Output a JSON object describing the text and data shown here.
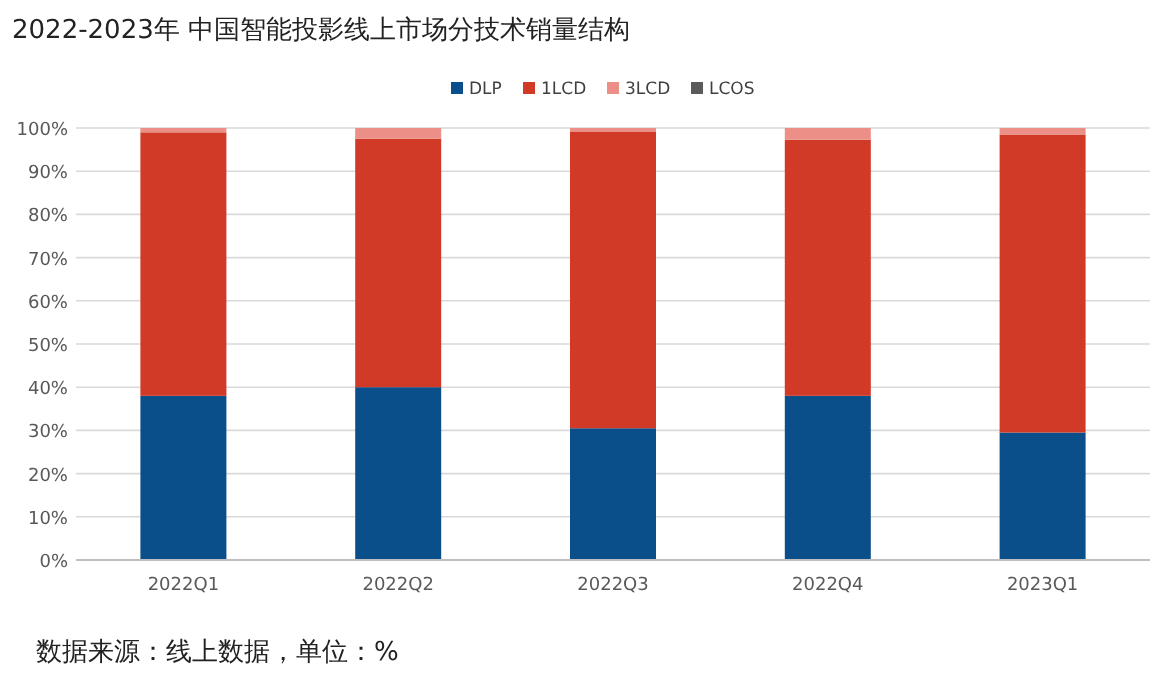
{
  "chart_data": {
    "type": "bar",
    "stacked": true,
    "title": "2022-2023年 中国智能投影线上市场分技术销量结构",
    "categories": [
      "2022Q1",
      "2022Q2",
      "2022Q3",
      "2022Q4",
      "2023Q1"
    ],
    "series": [
      {
        "name": "DLP",
        "color": "#0b4f8a",
        "values": [
          38,
          40,
          30.5,
          38,
          29.5
        ]
      },
      {
        "name": "1LCD",
        "color": "#d03a27",
        "values": [
          61,
          57.5,
          68.7,
          59.3,
          69
        ]
      },
      {
        "name": "3LCD",
        "color": "#ec8f86",
        "values": [
          1,
          2.5,
          0.8,
          2.7,
          1.5
        ]
      },
      {
        "name": "LCOS",
        "color": "#5a5a5a",
        "values": [
          0,
          0,
          0,
          0,
          0
        ]
      }
    ],
    "ylim": [
      0,
      100
    ],
    "yticks": [
      {
        "value": 0,
        "label": "0%"
      },
      {
        "value": 10,
        "label": "10%"
      },
      {
        "value": 20,
        "label": "20%"
      },
      {
        "value": 30,
        "label": "30%"
      },
      {
        "value": 40,
        "label": "40%"
      },
      {
        "value": 50,
        "label": "50%"
      },
      {
        "value": 60,
        "label": "60%"
      },
      {
        "value": 70,
        "label": "70%"
      },
      {
        "value": 80,
        "label": "80%"
      },
      {
        "value": 90,
        "label": "90%"
      },
      {
        "value": 100,
        "label": "100%"
      }
    ],
    "grid": "y",
    "legend": "top",
    "annotations": [
      "数据来源：线上数据，单位：%"
    ]
  }
}
